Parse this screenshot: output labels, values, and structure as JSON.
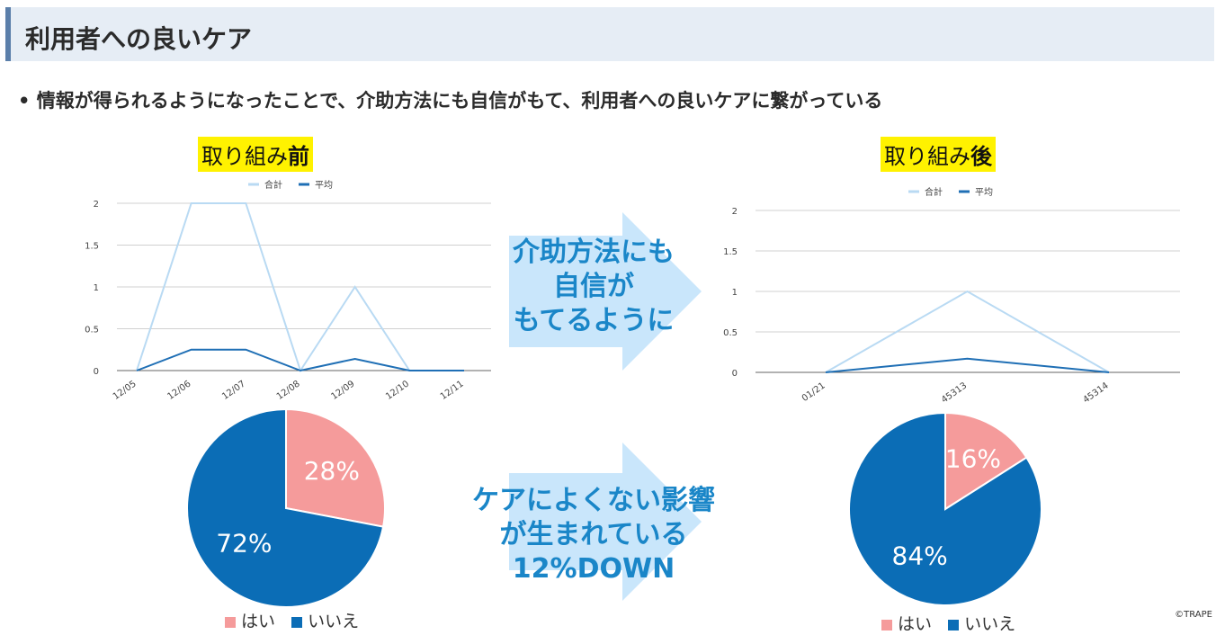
{
  "slide": {
    "title": "利用者への良いケア",
    "bullet": "• 情報が得られるようになったことで、介助方法にも自信がもて、利用者への良いケアに繋がっている",
    "credit": "©TRAPE"
  },
  "labels": {
    "before_prefix": "取り組み",
    "before_suffix": "前",
    "after_prefix": "取り組み",
    "after_suffix": "後"
  },
  "arrows": {
    "top": [
      "介助方法にも",
      "自信が",
      "もてるように"
    ],
    "bottom": [
      "ケアによくない影響",
      "が生まれている",
      "12%DOWN"
    ]
  },
  "colors": {
    "total_line": "#b9daf3",
    "avg_line": "#1f6fb5",
    "yes": "#f59b9b",
    "no": "#0b6db6",
    "arrow": "#c9e6fb"
  },
  "chart_data": [
    {
      "type": "line",
      "x": [
        "12/05",
        "12/06",
        "12/07",
        "12/08",
        "12/09",
        "12/10",
        "12/11"
      ],
      "series": [
        {
          "name": "合計",
          "values": [
            0,
            2,
            2,
            0,
            1,
            0,
            0
          ]
        },
        {
          "name": "平均",
          "values": [
            0,
            0.25,
            0.25,
            0,
            0.14,
            0,
            0
          ]
        }
      ],
      "yticks": [
        "0",
        "0.5",
        "1",
        "1.5",
        "2"
      ],
      "ylim": [
        0,
        2
      ],
      "legend": "top",
      "grid": true
    },
    {
      "type": "line",
      "x": [
        "01/21",
        "45313",
        "45314"
      ],
      "series": [
        {
          "name": "合計",
          "values": [
            0,
            1,
            0
          ]
        },
        {
          "name": "平均",
          "values": [
            0,
            0.17,
            0
          ]
        }
      ],
      "yticks": [
        "0",
        "0.5",
        "1",
        "1.5",
        "2"
      ],
      "ylim": [
        0,
        2
      ],
      "legend": "top",
      "grid": true
    },
    {
      "type": "pie",
      "categories": [
        "はい",
        "いいえ"
      ],
      "values": [
        28,
        72
      ],
      "labels": [
        "28%",
        "72%"
      ],
      "legend": "bottom"
    },
    {
      "type": "pie",
      "categories": [
        "はい",
        "いいえ"
      ],
      "values": [
        16,
        84
      ],
      "labels": [
        "16%",
        "84%"
      ],
      "legend": "bottom"
    }
  ]
}
